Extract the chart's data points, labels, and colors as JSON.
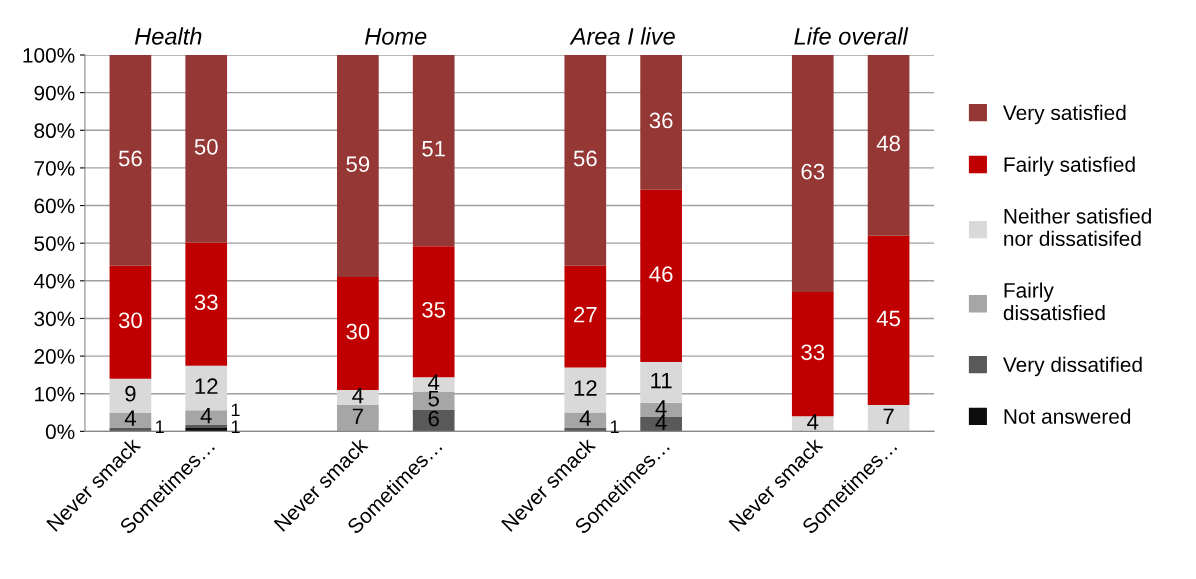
{
  "chart_data": {
    "type": "bar",
    "stacked": true,
    "categories": [
      "Never smack",
      "Sometimes…",
      null,
      "Never smack",
      "Sometimes…",
      null,
      "Never smack",
      "Sometimes…",
      null,
      "Never smack",
      "Sometimes…"
    ],
    "series": [
      {
        "name": "Not answered",
        "color": "#0d0d0d",
        "values": [
          null,
          0.9,
          null,
          null,
          null,
          null,
          null,
          null,
          null,
          null,
          null
        ],
        "value_labels": [
          null,
          "1",
          null,
          null,
          null,
          null,
          null,
          null,
          null,
          null,
          null
        ]
      },
      {
        "name": "Very dissatified",
        "color": "#595959",
        "values": [
          1,
          0.9,
          null,
          null,
          5.8,
          null,
          1,
          3.8,
          null,
          null,
          null
        ],
        "value_labels": [
          "1",
          "1",
          null,
          null,
          "6",
          null,
          "1",
          "4",
          null,
          null,
          null
        ]
      },
      {
        "name": "Fairly\ndissatisfied",
        "color": "#a6a6a6",
        "values": [
          4,
          3.8,
          null,
          7,
          4.8,
          null,
          4,
          3.8,
          null,
          null,
          null
        ],
        "value_labels": [
          "4",
          "4",
          null,
          "7",
          "5",
          null,
          "4",
          "4",
          null,
          null,
          null
        ]
      },
      {
        "name": "Neither satisfied\nnor dissatisifed",
        "color": "#d9d9d9",
        "values": [
          9,
          11.8,
          null,
          4,
          3.8,
          null,
          12,
          10.8,
          null,
          4,
          7
        ],
        "value_labels": [
          "9",
          "12",
          null,
          "4",
          "4",
          null,
          "12",
          "11",
          null,
          "4",
          "7"
        ]
      },
      {
        "name": "Fairly satisfied",
        "color": "#c00000",
        "values": [
          30,
          32.8,
          null,
          30,
          34.8,
          null,
          27,
          45.8,
          null,
          33,
          45
        ],
        "value_labels": [
          "30",
          "33",
          null,
          "30",
          "35",
          null,
          "27",
          "46",
          null,
          "33",
          "45"
        ]
      },
      {
        "name": "Very satisfied",
        "color": "#953735",
        "values": [
          56,
          49.8,
          null,
          59,
          50.8,
          null,
          56,
          35.8,
          null,
          63,
          48
        ],
        "value_labels": [
          "56",
          "50",
          null,
          "59",
          "51",
          null,
          "56",
          "36",
          null,
          "63",
          "48"
        ]
      }
    ],
    "ylim": [
      0,
      100
    ],
    "yticks": [
      {
        "value": 0,
        "label": "0%"
      },
      {
        "value": 10,
        "label": "10%"
      },
      {
        "value": 20,
        "label": "20%"
      },
      {
        "value": 30,
        "label": "30%"
      },
      {
        "value": 40,
        "label": "40%"
      },
      {
        "value": 50,
        "label": "50%"
      },
      {
        "value": 60,
        "label": "60%"
      },
      {
        "value": 70,
        "label": "70%"
      },
      {
        "value": 80,
        "label": "80%"
      },
      {
        "value": 90,
        "label": "90%"
      },
      {
        "value": 100,
        "label": "100%"
      }
    ],
    "grid": "y",
    "legend": "right",
    "annotations": [
      "Health",
      "Home",
      "Area I live",
      "Life overall"
    ]
  }
}
